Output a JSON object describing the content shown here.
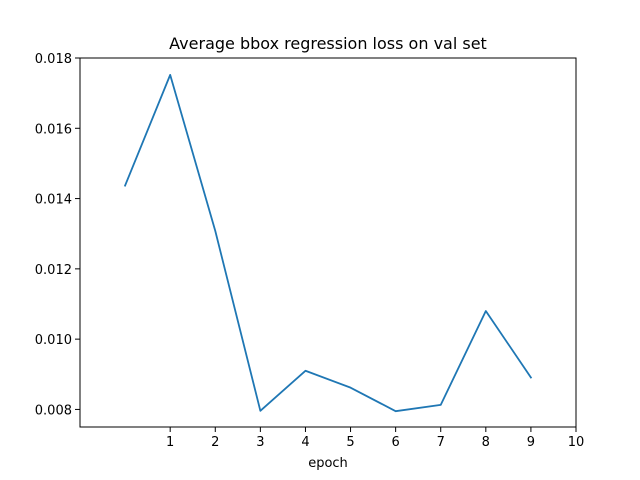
{
  "chart_data": {
    "type": "line",
    "title": "Average bbox regression loss on val set",
    "xlabel": "epoch",
    "ylabel": "",
    "xlim": [
      -1,
      10
    ],
    "ylim": [
      0.0075,
      0.018
    ],
    "x_ticks": [
      1,
      2,
      3,
      4,
      5,
      6,
      7,
      8,
      9,
      10
    ],
    "x_tick_labels": [
      "1",
      "2",
      "3",
      "4",
      "5",
      "6",
      "7",
      "8",
      "9",
      "10"
    ],
    "y_ticks": [
      0.008,
      0.01,
      0.012,
      0.014,
      0.016,
      0.018
    ],
    "y_tick_labels": [
      "0.008",
      "0.010",
      "0.012",
      "0.014",
      "0.016",
      "0.018"
    ],
    "grid": false,
    "series": [
      {
        "color": "#1f77b4",
        "x": [
          0,
          1,
          2,
          3,
          4,
          5,
          6,
          7,
          8,
          9
        ],
        "values": [
          0.01437,
          0.01752,
          0.01308,
          0.00796,
          0.0091,
          0.00862,
          0.00795,
          0.00813,
          0.0108,
          0.00891
        ]
      }
    ]
  }
}
